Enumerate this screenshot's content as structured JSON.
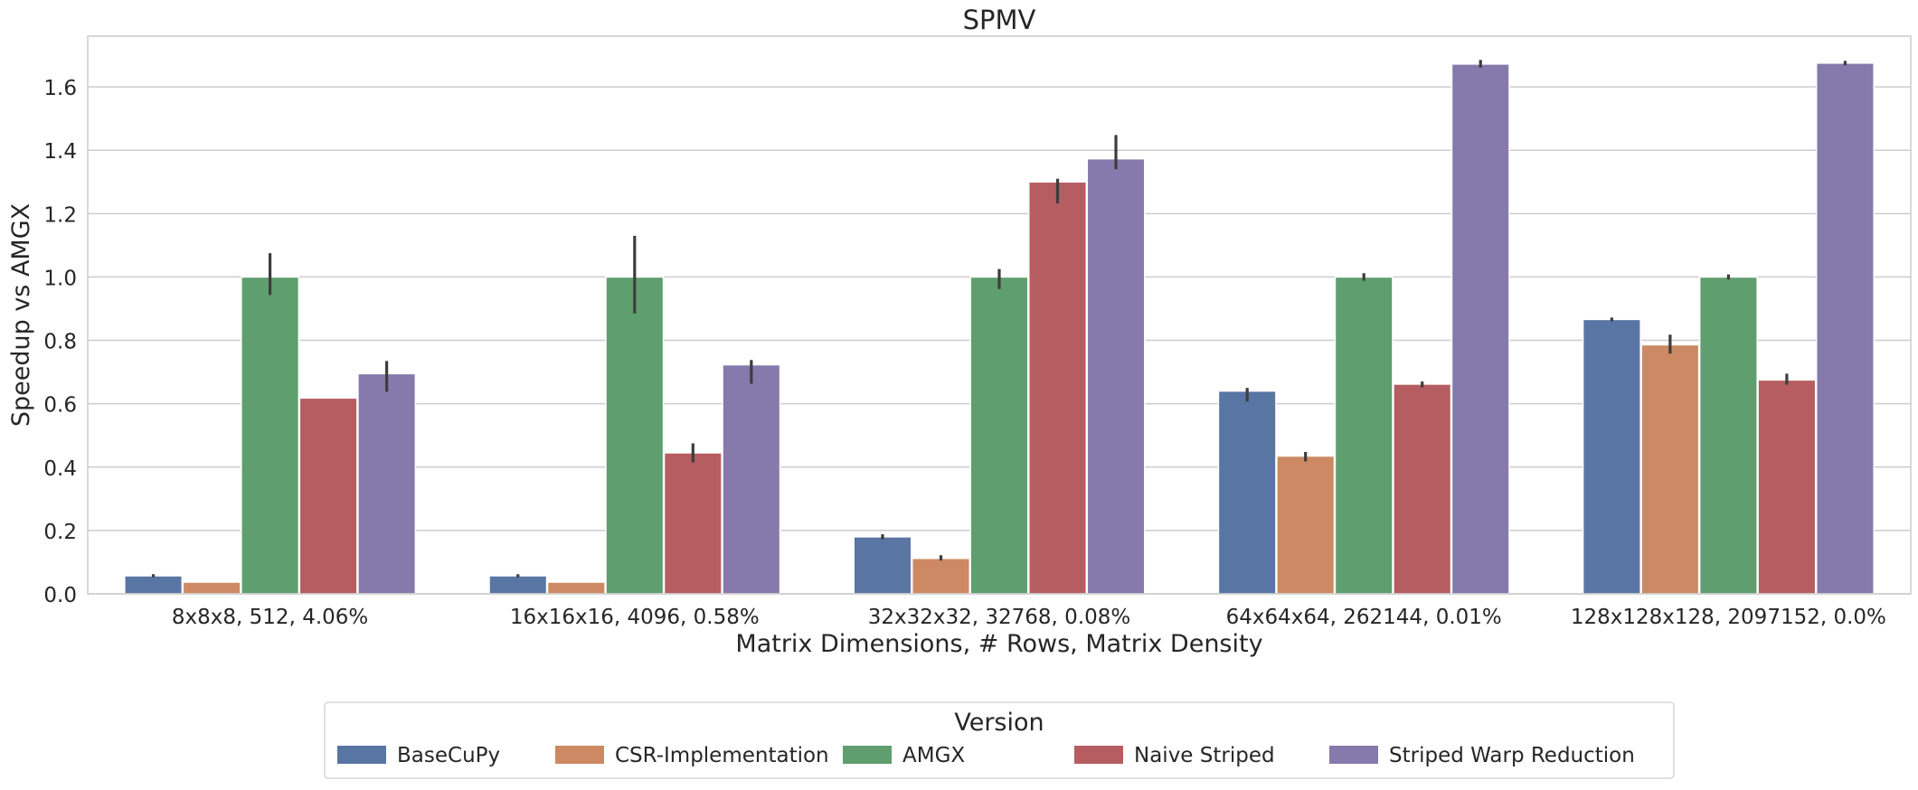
{
  "chart_data": {
    "type": "bar",
    "title": "SPMV",
    "xlabel": "Matrix Dimensions, # Rows, Matrix Density",
    "ylabel": "Speedup vs AMGX",
    "ylim": [
      0,
      1.76
    ],
    "yticks": [
      0.0,
      0.2,
      0.4,
      0.6,
      0.8,
      1.0,
      1.2,
      1.4,
      1.6
    ],
    "ytick_labels": [
      "0.0",
      "0.2",
      "0.4",
      "0.6",
      "0.8",
      "1.0",
      "1.2",
      "1.4",
      "1.6"
    ],
    "grid": true,
    "legend": {
      "title": "Version",
      "placement": "bottom-center"
    },
    "categories": [
      "8x8x8, 512, 4.06%",
      "16x16x16, 4096, 0.58%",
      "32x32x32, 32768, 0.08%",
      "64x64x64, 262144, 0.01%",
      "128x128x128, 2097152, 0.0%"
    ],
    "series": [
      {
        "name": "BaseCuPy",
        "color": "#5975a4",
        "values": [
          0.057,
          0.057,
          0.18,
          0.64,
          0.866
        ],
        "error": [
          [
            0.052,
            0.062
          ],
          [
            0.052,
            0.062
          ],
          [
            0.172,
            0.188
          ],
          [
            0.607,
            0.65
          ],
          [
            0.86,
            0.872
          ]
        ]
      },
      {
        "name": "CSR-Implementation",
        "color": "#cc8963",
        "values": [
          0.037,
          0.037,
          0.112,
          0.435,
          0.786
        ],
        "error": [
          null,
          null,
          [
            0.105,
            0.122
          ],
          [
            0.418,
            0.448
          ],
          [
            0.758,
            0.818
          ]
        ]
      },
      {
        "name": "AMGX",
        "color": "#5f9e6e",
        "values": [
          1.0,
          1.0,
          1.0,
          1.0,
          1.0
        ],
        "error": [
          [
            0.943,
            1.075
          ],
          [
            0.885,
            1.13
          ],
          [
            0.962,
            1.025
          ],
          [
            0.988,
            1.012
          ],
          [
            0.992,
            1.008
          ]
        ]
      },
      {
        "name": "Naive Striped",
        "color": "#b55d60",
        "values": [
          0.618,
          0.445,
          1.3,
          0.662,
          0.675
        ],
        "error": [
          null,
          [
            0.415,
            0.475
          ],
          [
            1.232,
            1.31
          ],
          [
            0.652,
            0.67
          ],
          [
            0.66,
            0.695
          ]
        ]
      },
      {
        "name": "Striped Warp Reduction",
        "color": "#857aab",
        "values": [
          0.695,
          0.723,
          1.373,
          1.672,
          1.675
        ],
        "error": [
          [
            0.638,
            0.735
          ],
          [
            0.663,
            0.738
          ],
          [
            1.34,
            1.448
          ],
          [
            1.66,
            1.685
          ],
          [
            1.668,
            1.682
          ]
        ]
      }
    ]
  }
}
